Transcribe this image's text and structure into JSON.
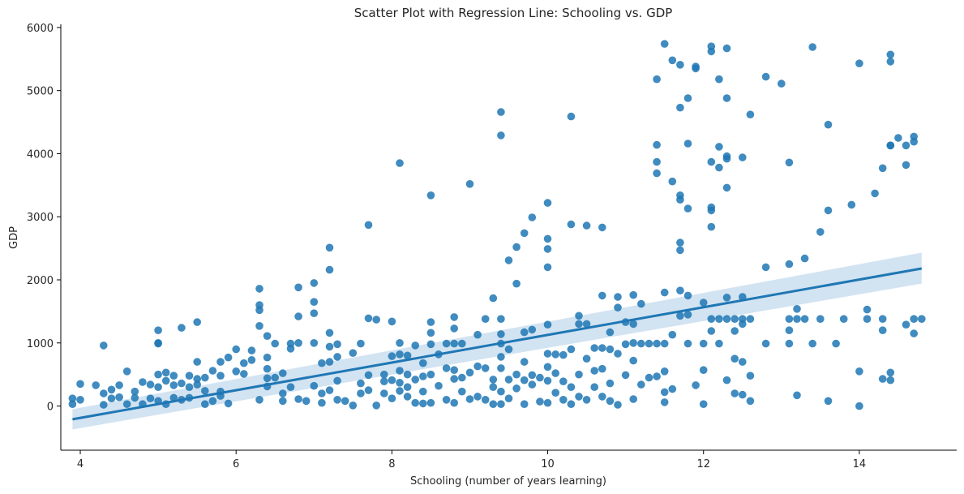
{
  "chart_data": {
    "type": "scatter",
    "title": "Scatter Plot with Regression Line: Schooling vs. GDP",
    "xlabel": "Schooling (number of years learning)",
    "ylabel": "GDP",
    "xlim": [
      3.75,
      15.25
    ],
    "ylim": [
      -700,
      6050
    ],
    "xticks": [
      4,
      6,
      8,
      10,
      12,
      14
    ],
    "yticks": [
      0,
      1000,
      2000,
      3000,
      4000,
      5000,
      6000
    ],
    "grid": false,
    "colors": {
      "points": "#1f77b4",
      "line": "#1f77b4",
      "band": "#a6c8e6"
    },
    "regression": {
      "x": [
        3.9,
        14.8
      ],
      "y": [
        -210,
        2180
      ],
      "ci_low": [
        -370,
        1940
      ],
      "ci_high": [
        -50,
        2430
      ]
    },
    "points": [
      [
        3.9,
        120
      ],
      [
        3.9,
        30
      ],
      [
        4.0,
        350
      ],
      [
        4.0,
        100
      ],
      [
        4.2,
        330
      ],
      [
        4.3,
        960
      ],
      [
        4.3,
        200
      ],
      [
        4.3,
        20
      ],
      [
        4.4,
        260
      ],
      [
        4.4,
        120
      ],
      [
        4.5,
        330
      ],
      [
        4.5,
        140
      ],
      [
        4.6,
        550
      ],
      [
        4.6,
        30
      ],
      [
        4.7,
        230
      ],
      [
        4.7,
        130
      ],
      [
        4.8,
        380
      ],
      [
        4.8,
        30
      ],
      [
        4.9,
        340
      ],
      [
        4.9,
        120
      ],
      [
        5.0,
        1200
      ],
      [
        5.0,
        1000
      ],
      [
        5.0,
        990
      ],
      [
        5.0,
        500
      ],
      [
        5.0,
        300
      ],
      [
        5.0,
        80
      ],
      [
        5.1,
        530
      ],
      [
        5.1,
        400
      ],
      [
        5.1,
        30
      ],
      [
        5.2,
        480
      ],
      [
        5.2,
        330
      ],
      [
        5.2,
        130
      ],
      [
        5.3,
        1240
      ],
      [
        5.3,
        360
      ],
      [
        5.3,
        100
      ],
      [
        5.4,
        480
      ],
      [
        5.4,
        300
      ],
      [
        5.4,
        130
      ],
      [
        5.5,
        1330
      ],
      [
        5.5,
        700
      ],
      [
        5.5,
        430
      ],
      [
        5.5,
        340
      ],
      [
        5.6,
        450
      ],
      [
        5.6,
        240
      ],
      [
        5.6,
        30
      ],
      [
        5.7,
        560
      ],
      [
        5.7,
        80
      ],
      [
        5.8,
        700
      ],
      [
        5.8,
        480
      ],
      [
        5.8,
        230
      ],
      [
        5.8,
        160
      ],
      [
        5.9,
        770
      ],
      [
        5.9,
        40
      ],
      [
        6.0,
        900
      ],
      [
        6.0,
        550
      ],
      [
        6.1,
        680
      ],
      [
        6.1,
        510
      ],
      [
        6.2,
        880
      ],
      [
        6.2,
        730
      ],
      [
        6.3,
        1860
      ],
      [
        6.3,
        1600
      ],
      [
        6.3,
        1520
      ],
      [
        6.3,
        1270
      ],
      [
        6.3,
        100
      ],
      [
        6.4,
        1110
      ],
      [
        6.4,
        770
      ],
      [
        6.4,
        590
      ],
      [
        6.4,
        440
      ],
      [
        6.4,
        310
      ],
      [
        6.5,
        990
      ],
      [
        6.5,
        450
      ],
      [
        6.6,
        520
      ],
      [
        6.6,
        200
      ],
      [
        6.6,
        80
      ],
      [
        6.7,
        990
      ],
      [
        6.7,
        910
      ],
      [
        6.7,
        300
      ],
      [
        6.8,
        1880
      ],
      [
        6.8,
        1420
      ],
      [
        6.8,
        1000
      ],
      [
        6.8,
        110
      ],
      [
        6.9,
        80
      ],
      [
        7.0,
        1950
      ],
      [
        7.0,
        1650
      ],
      [
        7.0,
        1470
      ],
      [
        7.0,
        1000
      ],
      [
        7.0,
        320
      ],
      [
        7.1,
        680
      ],
      [
        7.1,
        200
      ],
      [
        7.1,
        50
      ],
      [
        7.2,
        2510
      ],
      [
        7.2,
        2160
      ],
      [
        7.2,
        1160
      ],
      [
        7.2,
        940
      ],
      [
        7.2,
        700
      ],
      [
        7.2,
        250
      ],
      [
        7.3,
        980
      ],
      [
        7.3,
        780
      ],
      [
        7.3,
        400
      ],
      [
        7.3,
        100
      ],
      [
        7.4,
        80
      ],
      [
        7.5,
        840
      ],
      [
        7.5,
        10
      ],
      [
        7.6,
        990
      ],
      [
        7.6,
        360
      ],
      [
        7.6,
        200
      ],
      [
        7.7,
        2870
      ],
      [
        7.7,
        1390
      ],
      [
        7.7,
        490
      ],
      [
        7.7,
        250
      ],
      [
        7.8,
        1370
      ],
      [
        7.8,
        10
      ],
      [
        7.9,
        500
      ],
      [
        7.9,
        390
      ],
      [
        7.9,
        200
      ],
      [
        8.0,
        1340
      ],
      [
        8.0,
        790
      ],
      [
        8.0,
        410
      ],
      [
        8.0,
        120
      ],
      [
        8.1,
        3850
      ],
      [
        8.1,
        1000
      ],
      [
        8.1,
        820
      ],
      [
        8.1,
        560
      ],
      [
        8.1,
        370
      ],
      [
        8.1,
        240
      ],
      [
        8.2,
        800
      ],
      [
        8.2,
        500
      ],
      [
        8.2,
        300
      ],
      [
        8.2,
        150
      ],
      [
        8.3,
        960
      ],
      [
        8.3,
        420
      ],
      [
        8.3,
        50
      ],
      [
        8.4,
        680
      ],
      [
        8.4,
        470
      ],
      [
        8.4,
        230
      ],
      [
        8.4,
        40
      ],
      [
        8.5,
        3340
      ],
      [
        8.5,
        1330
      ],
      [
        8.5,
        1160
      ],
      [
        8.5,
        980
      ],
      [
        8.5,
        500
      ],
      [
        8.5,
        50
      ],
      [
        8.6,
        820
      ],
      [
        8.6,
        320
      ],
      [
        8.7,
        990
      ],
      [
        8.7,
        600
      ],
      [
        8.7,
        100
      ],
      [
        8.8,
        1410
      ],
      [
        8.8,
        1230
      ],
      [
        8.8,
        990
      ],
      [
        8.8,
        570
      ],
      [
        8.8,
        430
      ],
      [
        8.8,
        50
      ],
      [
        8.9,
        990
      ],
      [
        8.9,
        450
      ],
      [
        8.9,
        230
      ],
      [
        9.0,
        3520
      ],
      [
        9.0,
        530
      ],
      [
        9.0,
        110
      ],
      [
        9.1,
        1130
      ],
      [
        9.1,
        630
      ],
      [
        9.1,
        150
      ],
      [
        9.2,
        1380
      ],
      [
        9.2,
        600
      ],
      [
        9.2,
        100
      ],
      [
        9.3,
        1710
      ],
      [
        9.3,
        420
      ],
      [
        9.3,
        300
      ],
      [
        9.3,
        30
      ],
      [
        9.4,
        4660
      ],
      [
        9.4,
        4290
      ],
      [
        9.4,
        1380
      ],
      [
        9.4,
        1140
      ],
      [
        9.4,
        990
      ],
      [
        9.4,
        780
      ],
      [
        9.4,
        600
      ],
      [
        9.4,
        230
      ],
      [
        9.4,
        30
      ],
      [
        9.5,
        2310
      ],
      [
        9.5,
        900
      ],
      [
        9.5,
        420
      ],
      [
        9.5,
        120
      ],
      [
        9.6,
        2520
      ],
      [
        9.6,
        1940
      ],
      [
        9.6,
        500
      ],
      [
        9.6,
        280
      ],
      [
        9.7,
        2740
      ],
      [
        9.7,
        1170
      ],
      [
        9.7,
        700
      ],
      [
        9.7,
        410
      ],
      [
        9.7,
        30
      ],
      [
        9.8,
        2990
      ],
      [
        9.8,
        1210
      ],
      [
        9.8,
        490
      ],
      [
        9.8,
        340
      ],
      [
        9.9,
        450
      ],
      [
        9.9,
        70
      ],
      [
        10.0,
        3220
      ],
      [
        10.0,
        2650
      ],
      [
        10.0,
        2490
      ],
      [
        10.0,
        2200
      ],
      [
        10.0,
        1290
      ],
      [
        10.0,
        830
      ],
      [
        10.0,
        620
      ],
      [
        10.0,
        400
      ],
      [
        10.0,
        50
      ],
      [
        10.1,
        820
      ],
      [
        10.1,
        520
      ],
      [
        10.1,
        210
      ],
      [
        10.2,
        810
      ],
      [
        10.2,
        390
      ],
      [
        10.2,
        100
      ],
      [
        10.3,
        4590
      ],
      [
        10.3,
        2880
      ],
      [
        10.3,
        900
      ],
      [
        10.3,
        300
      ],
      [
        10.3,
        30
      ],
      [
        10.4,
        1430
      ],
      [
        10.4,
        1300
      ],
      [
        10.4,
        500
      ],
      [
        10.4,
        150
      ],
      [
        10.5,
        2860
      ],
      [
        10.5,
        1300
      ],
      [
        10.5,
        750
      ],
      [
        10.5,
        100
      ],
      [
        10.6,
        920
      ],
      [
        10.6,
        560
      ],
      [
        10.6,
        300
      ],
      [
        10.7,
        2830
      ],
      [
        10.7,
        1750
      ],
      [
        10.7,
        920
      ],
      [
        10.7,
        590
      ],
      [
        10.7,
        150
      ],
      [
        10.8,
        1170
      ],
      [
        10.8,
        900
      ],
      [
        10.8,
        360
      ],
      [
        10.8,
        80
      ],
      [
        10.9,
        1730
      ],
      [
        10.9,
        1560
      ],
      [
        10.9,
        830
      ],
      [
        10.9,
        20
      ],
      [
        11.0,
        1330
      ],
      [
        11.0,
        980
      ],
      [
        11.0,
        490
      ],
      [
        11.1,
        1760
      ],
      [
        11.1,
        1300
      ],
      [
        11.1,
        1000
      ],
      [
        11.1,
        720
      ],
      [
        11.1,
        110
      ],
      [
        11.2,
        1620
      ],
      [
        11.2,
        990
      ],
      [
        11.2,
        340
      ],
      [
        11.3,
        990
      ],
      [
        11.3,
        450
      ],
      [
        11.4,
        5180
      ],
      [
        11.4,
        4140
      ],
      [
        11.4,
        3870
      ],
      [
        11.4,
        3690
      ],
      [
        11.4,
        990
      ],
      [
        11.4,
        470
      ],
      [
        11.5,
        5740
      ],
      [
        11.5,
        1800
      ],
      [
        11.5,
        990
      ],
      [
        11.5,
        550
      ],
      [
        11.5,
        220
      ],
      [
        11.5,
        60
      ],
      [
        11.6,
        5480
      ],
      [
        11.6,
        3560
      ],
      [
        11.6,
        1130
      ],
      [
        11.6,
        270
      ],
      [
        11.7,
        5410
      ],
      [
        11.7,
        4730
      ],
      [
        11.7,
        3340
      ],
      [
        11.7,
        3270
      ],
      [
        11.7,
        2590
      ],
      [
        11.7,
        2470
      ],
      [
        11.7,
        1830
      ],
      [
        11.7,
        1430
      ],
      [
        11.8,
        4880
      ],
      [
        11.8,
        4160
      ],
      [
        11.8,
        3130
      ],
      [
        11.8,
        1750
      ],
      [
        11.8,
        1450
      ],
      [
        11.8,
        990
      ],
      [
        11.9,
        5350
      ],
      [
        11.9,
        5380
      ],
      [
        11.9,
        330
      ],
      [
        12.0,
        1640
      ],
      [
        12.0,
        990
      ],
      [
        12.0,
        570
      ],
      [
        12.0,
        30
      ],
      [
        12.1,
        5700
      ],
      [
        12.1,
        5620
      ],
      [
        12.1,
        3870
      ],
      [
        12.1,
        3150
      ],
      [
        12.1,
        3100
      ],
      [
        12.1,
        2840
      ],
      [
        12.1,
        1380
      ],
      [
        12.1,
        1190
      ],
      [
        12.2,
        5180
      ],
      [
        12.2,
        4110
      ],
      [
        12.2,
        3780
      ],
      [
        12.2,
        1380
      ],
      [
        12.2,
        990
      ],
      [
        12.3,
        5670
      ],
      [
        12.3,
        4880
      ],
      [
        12.3,
        3960
      ],
      [
        12.3,
        3920
      ],
      [
        12.3,
        3460
      ],
      [
        12.3,
        1380
      ],
      [
        12.3,
        1720
      ],
      [
        12.3,
        410
      ],
      [
        12.4,
        1380
      ],
      [
        12.4,
        1190
      ],
      [
        12.4,
        750
      ],
      [
        12.4,
        200
      ],
      [
        12.5,
        3940
      ],
      [
        12.5,
        1730
      ],
      [
        12.5,
        1380
      ],
      [
        12.5,
        1300
      ],
      [
        12.5,
        700
      ],
      [
        12.5,
        180
      ],
      [
        12.6,
        4620
      ],
      [
        12.6,
        1380
      ],
      [
        12.6,
        480
      ],
      [
        12.6,
        80
      ],
      [
        12.8,
        5220
      ],
      [
        12.8,
        2200
      ],
      [
        12.8,
        990
      ],
      [
        13.0,
        5110
      ],
      [
        13.1,
        3860
      ],
      [
        13.1,
        2250
      ],
      [
        13.1,
        1380
      ],
      [
        13.1,
        1200
      ],
      [
        13.1,
        990
      ],
      [
        13.2,
        1540
      ],
      [
        13.2,
        1380
      ],
      [
        13.2,
        170
      ],
      [
        13.3,
        2340
      ],
      [
        13.3,
        1380
      ],
      [
        13.4,
        5690
      ],
      [
        13.4,
        990
      ],
      [
        13.5,
        2760
      ],
      [
        13.5,
        1380
      ],
      [
        13.6,
        4460
      ],
      [
        13.6,
        3100
      ],
      [
        13.6,
        80
      ],
      [
        13.7,
        990
      ],
      [
        13.8,
        1380
      ],
      [
        13.9,
        3190
      ],
      [
        14.0,
        5430
      ],
      [
        14.0,
        550
      ],
      [
        14.0,
        0
      ],
      [
        14.1,
        1530
      ],
      [
        14.1,
        1380
      ],
      [
        14.2,
        3370
      ],
      [
        14.3,
        3770
      ],
      [
        14.3,
        1380
      ],
      [
        14.3,
        1200
      ],
      [
        14.3,
        430
      ],
      [
        14.4,
        5570
      ],
      [
        14.4,
        5460
      ],
      [
        14.4,
        4130
      ],
      [
        14.4,
        4130
      ],
      [
        14.4,
        530
      ],
      [
        14.4,
        410
      ],
      [
        14.5,
        4250
      ],
      [
        14.6,
        4130
      ],
      [
        14.6,
        3820
      ],
      [
        14.6,
        1290
      ],
      [
        14.7,
        4270
      ],
      [
        14.7,
        4190
      ],
      [
        14.7,
        1380
      ],
      [
        14.7,
        1150
      ],
      [
        14.8,
        1380
      ]
    ]
  }
}
